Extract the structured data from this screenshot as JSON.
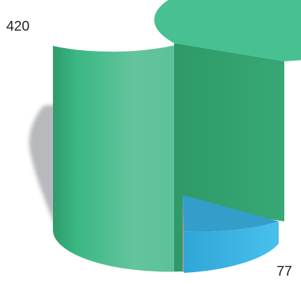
{
  "chart_data": {
    "type": "pie",
    "style": "3d-cylinder",
    "title": "",
    "slices": [
      {
        "value": 420,
        "label": "420",
        "color": "#3dbb86"
      },
      {
        "value": 77,
        "label": "77",
        "color": "#37b4e2"
      }
    ],
    "legend": "none",
    "shadow": true
  }
}
